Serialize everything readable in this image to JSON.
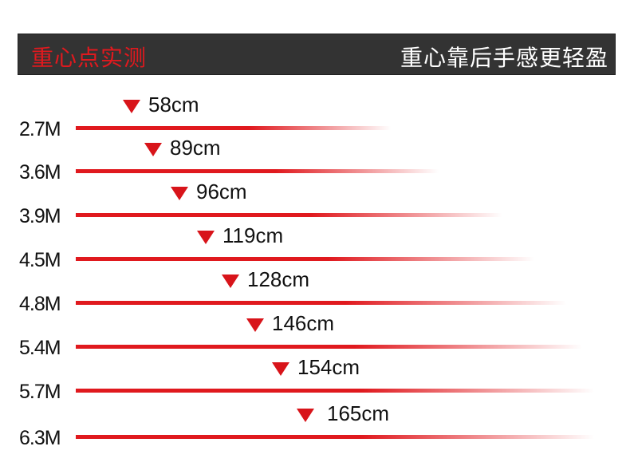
{
  "header": {
    "title": "重心点实测",
    "slogan": "重心靠后手感更轻盈"
  },
  "colors": {
    "accent": "#e0191e",
    "header_bg": "#333333",
    "marker": "#d8141a"
  },
  "chart_data": {
    "type": "bar",
    "categories": [
      "2.7M",
      "3.6M",
      "3.9M",
      "4.5M",
      "4.8M",
      "5.4M",
      "5.7M",
      "6.3M"
    ],
    "values": [
      58,
      89,
      96,
      119,
      128,
      146,
      154,
      165
    ],
    "value_labels": [
      "58cm",
      "89cm",
      "96cm",
      "119cm",
      "128cm",
      "146cm",
      "154cm",
      "165cm"
    ],
    "unit": "cm",
    "marker": "triangle-down-icon"
  }
}
